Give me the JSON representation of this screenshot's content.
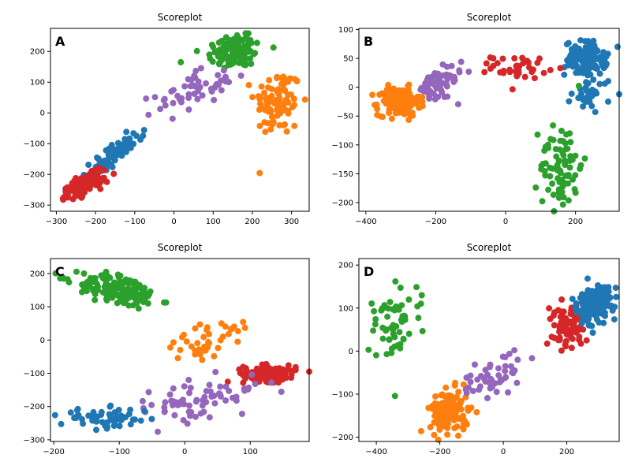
{
  "figure": {
    "title": "Scoreplot"
  },
  "chart_data": [
    {
      "type": "scatter",
      "label": "A",
      "title": "Scoreplot",
      "xlim": [
        -315,
        345
      ],
      "ylim": [
        -320,
        275
      ],
      "xticks": [
        -300,
        -200,
        -100,
        0,
        100,
        200,
        300
      ],
      "yticks": [
        -300,
        -200,
        -100,
        0,
        100,
        200
      ],
      "clusters": [
        {
          "color": "#2ca02c",
          "n": 110,
          "cx": 155,
          "cy": 200,
          "sx": 35,
          "sy": 30,
          "rot": 20
        },
        {
          "color": "#ff7f0e",
          "n": 90,
          "cx": 265,
          "cy": 35,
          "sx": 30,
          "sy": 55,
          "rot": 0
        },
        {
          "color": "#9467bd",
          "n": 55,
          "cx": 50,
          "cy": 70,
          "sx": 55,
          "sy": 25,
          "rot": 25
        },
        {
          "color": "#1f77b4",
          "n": 90,
          "cx": -150,
          "cy": -130,
          "sx": 50,
          "sy": 12,
          "rot": 45
        },
        {
          "color": "#d62728",
          "n": 130,
          "cx": -230,
          "cy": -235,
          "sx": 30,
          "sy": 12,
          "rot": 35
        }
      ]
    },
    {
      "type": "scatter",
      "label": "B",
      "title": "Scoreplot",
      "xlim": [
        -420,
        325
      ],
      "ylim": [
        -215,
        102
      ],
      "xticks": [
        -400,
        -200,
        0,
        200
      ],
      "yticks": [
        -200,
        -150,
        -100,
        -50,
        0,
        50,
        100
      ],
      "clusters": [
        {
          "color": "#1f77b4",
          "n": 120,
          "cx": 230,
          "cy": 50,
          "sx": 30,
          "sy": 15,
          "rot": 0
        },
        {
          "color": "#1f77b4",
          "n": 30,
          "cx": 250,
          "cy": -10,
          "sx": 30,
          "sy": 15,
          "rot": 0
        },
        {
          "color": "#d62728",
          "n": 40,
          "cx": 40,
          "cy": 35,
          "sx": 40,
          "sy": 10,
          "rot": 0
        },
        {
          "color": "#9467bd",
          "n": 60,
          "cx": -200,
          "cy": 0,
          "sx": 40,
          "sy": 15,
          "rot": 15
        },
        {
          "color": "#ff7f0e",
          "n": 150,
          "cx": -305,
          "cy": -25,
          "sx": 30,
          "sy": 12,
          "rot": 0
        },
        {
          "color": "#2ca02c",
          "n": 80,
          "cx": 160,
          "cy": -135,
          "sx": 30,
          "sy": 40,
          "rot": 0
        }
      ]
    },
    {
      "type": "scatter",
      "label": "C",
      "title": "Scoreplot",
      "xlim": [
        -205,
        190
      ],
      "ylim": [
        -305,
        245
      ],
      "xticks": [
        -200,
        -100,
        0,
        100
      ],
      "yticks": [
        -300,
        -200,
        -100,
        0,
        100,
        200
      ],
      "clusters": [
        {
          "color": "#2ca02c",
          "n": 160,
          "cx": -100,
          "cy": 150,
          "sx": 35,
          "sy": 20,
          "rot": -25
        },
        {
          "color": "#ff7f0e",
          "n": 40,
          "cx": 40,
          "cy": 5,
          "sx": 25,
          "sy": 40,
          "rot": -30
        },
        {
          "color": "#d62728",
          "n": 130,
          "cx": 130,
          "cy": -100,
          "sx": 20,
          "sy": 12,
          "rot": 0
        },
        {
          "color": "#9467bd",
          "n": 70,
          "cx": 20,
          "cy": -180,
          "sx": 55,
          "sy": 25,
          "rot": 25
        },
        {
          "color": "#1f77b4",
          "n": 60,
          "cx": -120,
          "cy": -235,
          "sx": 35,
          "sy": 15,
          "rot": 0
        }
      ]
    },
    {
      "type": "scatter",
      "label": "D",
      "title": "Scoreplot",
      "xlim": [
        -455,
        365
      ],
      "ylim": [
        -210,
        215
      ],
      "xticks": [
        -400,
        -200,
        0,
        200
      ],
      "yticks": [
        -200,
        -100,
        0,
        100,
        200
      ],
      "clusters": [
        {
          "color": "#2ca02c",
          "n": 60,
          "cx": -340,
          "cy": 70,
          "sx": 35,
          "sy": 55,
          "rot": -25
        },
        {
          "color": "#ff7f0e",
          "n": 140,
          "cx": -170,
          "cy": -140,
          "sx": 30,
          "sy": 25,
          "rot": 0
        },
        {
          "color": "#9467bd",
          "n": 50,
          "cx": -30,
          "cy": -60,
          "sx": 50,
          "sy": 20,
          "rot": 20
        },
        {
          "color": "#d62728",
          "n": 90,
          "cx": 200,
          "cy": 60,
          "sx": 25,
          "sy": 25,
          "rot": 30
        },
        {
          "color": "#1f77b4",
          "n": 150,
          "cx": 290,
          "cy": 110,
          "sx": 30,
          "sy": 22,
          "rot": 25
        }
      ]
    }
  ]
}
